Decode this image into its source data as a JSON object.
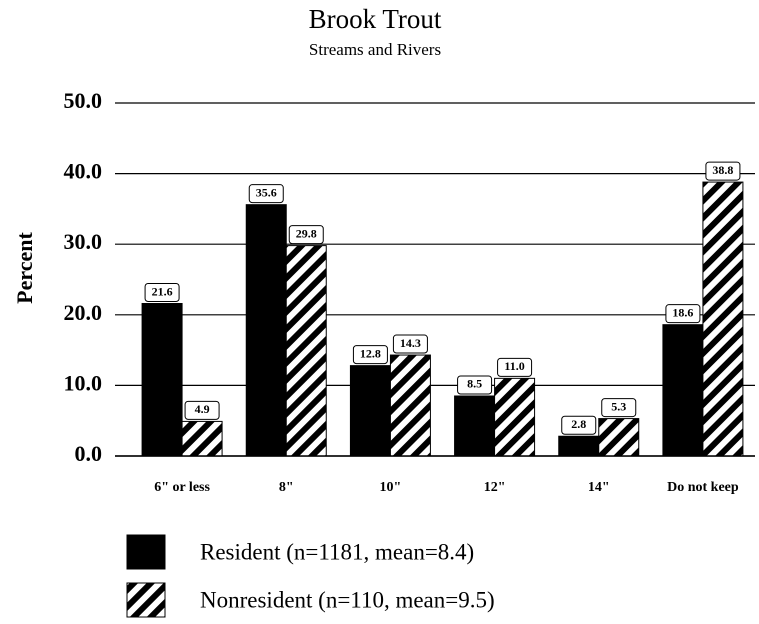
{
  "chart_data": {
    "type": "bar",
    "title": "Brook Trout",
    "subtitle": "Streams and Rivers",
    "y_label": "Percent",
    "categories": [
      "6\" or less",
      "8\"",
      "10\"",
      "12\"",
      "14\"",
      "Do not keep"
    ],
    "series": [
      {
        "name": "Resident (n=1181, mean=8.4)",
        "color": "#000000",
        "fill": "solid",
        "values": [
          21.6,
          35.6,
          12.8,
          8.5,
          2.8,
          18.6
        ],
        "value_labels": [
          "21.6",
          "35.6",
          "12.8",
          "8.5",
          "2.8",
          "18.6"
        ]
      },
      {
        "name": "Nonresident (n=110, mean=9.5)",
        "color": "#000000",
        "fill": "hatch",
        "values": [
          4.9,
          29.8,
          14.3,
          11.0,
          5.3,
          38.8
        ],
        "value_labels": [
          "4.9",
          "29.8",
          "14.3",
          "11.0",
          "5.3",
          "38.8"
        ]
      }
    ],
    "ylim": [
      0,
      50
    ],
    "yticks": [
      {
        "value": 0,
        "label": "0.0"
      },
      {
        "value": 10,
        "label": "10.0"
      },
      {
        "value": 20,
        "label": "20.0"
      },
      {
        "value": 30,
        "label": "30.0"
      },
      {
        "value": 40,
        "label": "40.0"
      },
      {
        "value": 50,
        "label": "50.0"
      }
    ],
    "grid": true,
    "legend": "bottom"
  }
}
